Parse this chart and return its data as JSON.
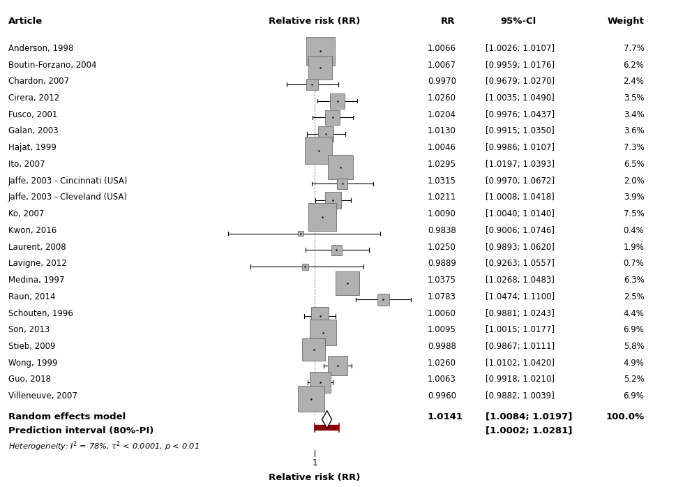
{
  "studies": [
    {
      "label": "Anderson, 1998",
      "rr": 1.0066,
      "ci_lo": 1.0026,
      "ci_hi": 1.0107,
      "weight": 7.7
    },
    {
      "label": "Boutin-Forzano, 2004",
      "rr": 1.0067,
      "ci_lo": 0.9959,
      "ci_hi": 1.0176,
      "weight": 6.2
    },
    {
      "label": "Chardon, 2007",
      "rr": 0.997,
      "ci_lo": 0.9679,
      "ci_hi": 1.027,
      "weight": 2.4
    },
    {
      "label": "Cirera, 2012",
      "rr": 1.026,
      "ci_lo": 1.0035,
      "ci_hi": 1.049,
      "weight": 3.5
    },
    {
      "label": "Fusco, 2001",
      "rr": 1.0204,
      "ci_lo": 0.9976,
      "ci_hi": 1.0437,
      "weight": 3.4
    },
    {
      "label": "Galan, 2003",
      "rr": 1.013,
      "ci_lo": 0.9915,
      "ci_hi": 1.035,
      "weight": 3.6
    },
    {
      "label": "Hajat, 1999",
      "rr": 1.0046,
      "ci_lo": 0.9986,
      "ci_hi": 1.0107,
      "weight": 7.3
    },
    {
      "label": "Ito, 2007",
      "rr": 1.0295,
      "ci_lo": 1.0197,
      "ci_hi": 1.0393,
      "weight": 6.5
    },
    {
      "label": "Jaffe, 2003 - Cincinnati (USA)",
      "rr": 1.0315,
      "ci_lo": 0.997,
      "ci_hi": 1.0672,
      "weight": 2.0
    },
    {
      "label": "Jaffe, 2003 - Cleveland (USA)",
      "rr": 1.0211,
      "ci_lo": 1.0008,
      "ci_hi": 1.0418,
      "weight": 3.9
    },
    {
      "label": "Ko, 2007",
      "rr": 1.009,
      "ci_lo": 1.004,
      "ci_hi": 1.014,
      "weight": 7.5
    },
    {
      "label": "Kwon, 2016",
      "rr": 0.9838,
      "ci_lo": 0.9006,
      "ci_hi": 1.0746,
      "weight": 0.4
    },
    {
      "label": "Laurent, 2008",
      "rr": 1.025,
      "ci_lo": 0.9893,
      "ci_hi": 1.062,
      "weight": 1.9
    },
    {
      "label": "Lavigne, 2012",
      "rr": 0.9889,
      "ci_lo": 0.9263,
      "ci_hi": 1.0557,
      "weight": 0.7
    },
    {
      "label": "Medina, 1997",
      "rr": 1.0375,
      "ci_lo": 1.0268,
      "ci_hi": 1.0483,
      "weight": 6.3
    },
    {
      "label": "Raun, 2014",
      "rr": 1.0783,
      "ci_lo": 1.0474,
      "ci_hi": 1.11,
      "weight": 2.5
    },
    {
      "label": "Schouten, 1996",
      "rr": 1.006,
      "ci_lo": 0.9881,
      "ci_hi": 1.0243,
      "weight": 4.4
    },
    {
      "label": "Son, 2013",
      "rr": 1.0095,
      "ci_lo": 1.0015,
      "ci_hi": 1.0177,
      "weight": 6.9
    },
    {
      "label": "Stieb, 2009",
      "rr": 0.9988,
      "ci_lo": 0.9867,
      "ci_hi": 1.0111,
      "weight": 5.8
    },
    {
      "label": "Wong, 1999",
      "rr": 1.026,
      "ci_lo": 1.0102,
      "ci_hi": 1.042,
      "weight": 4.9
    },
    {
      "label": "Guo, 2018",
      "rr": 1.0063,
      "ci_lo": 0.9918,
      "ci_hi": 1.021,
      "weight": 5.2
    },
    {
      "label": "Villeneuve, 2007",
      "rr": 0.996,
      "ci_lo": 0.9882,
      "ci_hi": 1.0039,
      "weight": 6.9
    }
  ],
  "pooled_rr": 1.0141,
  "pooled_ci_lo": 1.0084,
  "pooled_ci_hi": 1.0197,
  "pooled_weight": "100.0%",
  "pi_lo": 1.0002,
  "pi_hi": 1.0281,
  "col_header_article": "Article",
  "col_header_forest": "Relative risk (RR)",
  "col_header_rr": "RR",
  "col_header_ci": "95%-Cl",
  "col_header_weight": "Weight",
  "xlabel": "Relative risk (RR)",
  "xlim_lo": 0.88,
  "xlim_hi": 1.12,
  "ref_line": 1.0,
  "box_color": "#b0b0b0",
  "pi_color": "#8b0000",
  "line_color": "#000000",
  "bg_color": "#ffffff",
  "text_color": "#000000",
  "random_effects_label": "Random effects model",
  "pi_label": "Prediction interval (80%-PI)",
  "het_text": "Heterogeneity: $I^2$ = 78%, $\\tau^2$ < 0.0001, $p$ < 0.01"
}
